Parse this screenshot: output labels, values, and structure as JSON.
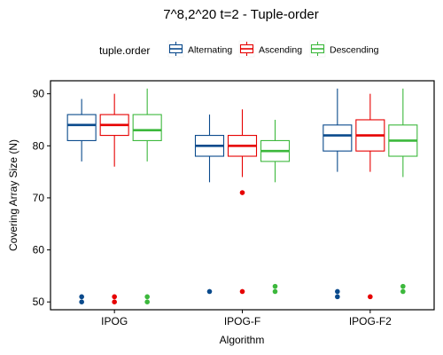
{
  "chart_data": {
    "type": "boxplot",
    "title": "7^8,2^20 t=2 - Tuple-order",
    "xlabel": "Algorithm",
    "ylabel": "Covering Array Size (N)",
    "categories": [
      "IPOG",
      "IPOG-F",
      "IPOG-F2"
    ],
    "ylim": [
      48.5,
      92.5
    ],
    "yticks": [
      50,
      60,
      70,
      80,
      90
    ],
    "grid": false,
    "legend": {
      "title": "tuple.order",
      "position": "top"
    },
    "series": [
      {
        "name": "Alternating",
        "color": "#0a4a8c",
        "boxes": [
          {
            "min": 77,
            "q1": 81,
            "median": 84,
            "q3": 86,
            "max": 89,
            "outliers": [
              51,
              50
            ]
          },
          {
            "min": 73,
            "q1": 78,
            "median": 80,
            "q3": 82,
            "max": 86,
            "outliers": [
              52
            ]
          },
          {
            "min": 75,
            "q1": 79,
            "median": 82,
            "q3": 84,
            "max": 91,
            "outliers": [
              52,
              51
            ]
          }
        ]
      },
      {
        "name": "Ascending",
        "color": "#e60000",
        "boxes": [
          {
            "min": 76,
            "q1": 82,
            "median": 84,
            "q3": 86,
            "max": 90,
            "outliers": [
              51,
              50
            ]
          },
          {
            "min": 74,
            "q1": 78,
            "median": 80,
            "q3": 82,
            "max": 87,
            "outliers": [
              71,
              52
            ]
          },
          {
            "min": 75,
            "q1": 79,
            "median": 82,
            "q3": 85,
            "max": 90,
            "outliers": [
              51
            ]
          }
        ]
      },
      {
        "name": "Descending",
        "color": "#3cb83c",
        "boxes": [
          {
            "min": 77,
            "q1": 81,
            "median": 83,
            "q3": 86,
            "max": 91,
            "outliers": [
              51,
              50
            ]
          },
          {
            "min": 73,
            "q1": 77,
            "median": 79,
            "q3": 81,
            "max": 85,
            "outliers": [
              53,
              52
            ]
          },
          {
            "min": 74,
            "q1": 78,
            "median": 81,
            "q3": 84,
            "max": 91,
            "outliers": [
              53,
              52
            ]
          }
        ]
      }
    ]
  }
}
